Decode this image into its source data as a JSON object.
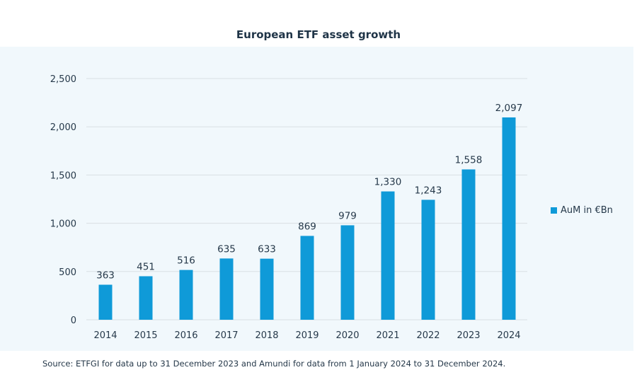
{
  "chart_data": {
    "type": "bar",
    "title": "European ETF asset growth",
    "categories": [
      "2014",
      "2015",
      "2016",
      "2017",
      "2018",
      "2019",
      "2020",
      "2021",
      "2022",
      "2023",
      "2024"
    ],
    "series": [
      {
        "name": "AuM in €Bn",
        "values": [
          363,
          451,
          516,
          635,
          633,
          869,
          979,
          1330,
          1243,
          1558,
          2097
        ],
        "color": "#0f9ad8"
      }
    ],
    "data_labels": [
      "363",
      "451",
      "516",
      "635",
      "633",
      "869",
      "979",
      "1,330",
      "1,243",
      "1,558",
      "2,097"
    ],
    "yticks": [
      0,
      500,
      1000,
      1500,
      2000,
      2500
    ],
    "ytick_labels": [
      "0",
      "500",
      "1,000",
      "1,500",
      "2,000",
      "2,500"
    ],
    "ylim": [
      0,
      2500
    ],
    "xlabel": "",
    "ylabel": "",
    "grid": true,
    "legend_position": "right"
  },
  "source": "Source: ETFGI for data up to 31 December 2023 and Amundi for data from 1 January 2024 to 31 December 2024."
}
